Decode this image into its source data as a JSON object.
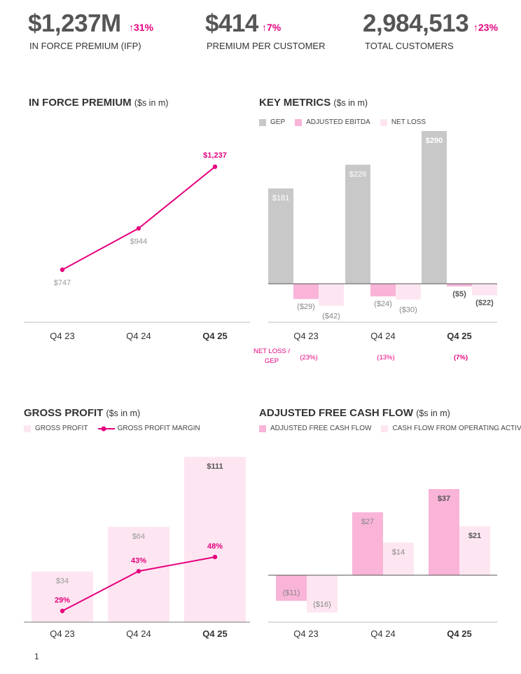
{
  "colors": {
    "pink": "#e6007e",
    "gep_gray": "#c8c8c8",
    "ebitda_pink": "#f9b4d8",
    "netloss_pink": "#fde6f1",
    "gp_bar": "#fde6f1",
    "afcf_pink": "#f9b4d8",
    "cfo_pink": "#fde6f1"
  },
  "kpis": [
    {
      "value": "$1,237M",
      "change": "↑31%",
      "label": "IN FORCE PREMIUM (IFP)"
    },
    {
      "value": "$414",
      "change": "↑7%",
      "label": "PREMIUM PER CUSTOMER"
    },
    {
      "value": "2,984,513",
      "change": "↑23%",
      "label": "TOTAL CUSTOMERS"
    }
  ],
  "panels": {
    "ifp": {
      "title": "IN FORCE PREMIUM",
      "units": "($s in m)"
    },
    "key_metrics": {
      "title": "KEY METRICS",
      "units": "($s in m)",
      "legend": [
        "GEP",
        "ADJUSTED EBITDA",
        "NET LOSS"
      ],
      "ratio_label": "NET LOSS / GEP",
      "ratio_values": [
        "(23%)",
        "(13%)",
        "(7%)"
      ]
    },
    "gross_profit": {
      "title": "GROSS PROFIT",
      "units": "($s in m)",
      "legend": [
        "GROSS PROFIT",
        "GROSS PROFIT MARGIN"
      ]
    },
    "afcf": {
      "title": "ADJUSTED FREE CASH FLOW",
      "units": "($s in m)",
      "legend": [
        "ADJUSTED FREE CASH FLOW",
        "CASH FLOW FROM OPERATING ACTIVITIES"
      ]
    }
  },
  "page_number": "1",
  "chart_data": [
    {
      "type": "line",
      "title": "IN FORCE PREMIUM ($s in m)",
      "categories": [
        "Q4 23",
        "Q4 24",
        "Q4 25"
      ],
      "series": [
        {
          "values": [
            747,
            944,
            1237
          ]
        }
      ],
      "data_labels": [
        "$747",
        "$944",
        "$1,237"
      ]
    },
    {
      "type": "bar",
      "title": "KEY METRICS ($s in m)",
      "categories": [
        "Q4 23",
        "Q4 24",
        "Q4 25"
      ],
      "series": [
        {
          "name": "GEP",
          "values": [
            181,
            226,
            290
          ],
          "labels": [
            "$181",
            "$226",
            "$290"
          ]
        },
        {
          "name": "ADJUSTED EBITDA",
          "values": [
            -29,
            -24,
            -5
          ],
          "labels": [
            "($29)",
            "($24)",
            "($5)"
          ]
        },
        {
          "name": "NET LOSS",
          "values": [
            -42,
            -30,
            -22
          ],
          "labels": [
            "($42)",
            "($30)",
            "($22)"
          ]
        }
      ]
    },
    {
      "type": "bar",
      "title": "GROSS PROFIT ($s in m)",
      "categories": [
        "Q4 23",
        "Q4 24",
        "Q4 25"
      ],
      "series": [
        {
          "name": "GROSS PROFIT",
          "values": [
            34,
            64,
            111
          ],
          "labels": [
            "$34",
            "$64",
            "$111"
          ]
        },
        {
          "name": "GROSS PROFIT MARGIN",
          "type": "line",
          "values": [
            29,
            43,
            48
          ],
          "labels": [
            "29%",
            "43%",
            "48%"
          ]
        }
      ]
    },
    {
      "type": "bar",
      "title": "ADJUSTED FREE CASH FLOW ($s in m)",
      "categories": [
        "Q4 23",
        "Q4 24",
        "Q4 25"
      ],
      "series": [
        {
          "name": "ADJUSTED FREE CASH FLOW",
          "values": [
            -11,
            27,
            37
          ],
          "labels": [
            "($11)",
            "$27",
            "$37"
          ]
        },
        {
          "name": "CASH FLOW FROM OPERATING ACTIVITIES",
          "values": [
            -16,
            14,
            21
          ],
          "labels": [
            "($16)",
            "$14",
            "$21"
          ]
        }
      ]
    }
  ]
}
